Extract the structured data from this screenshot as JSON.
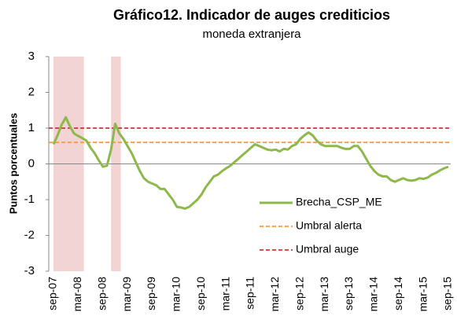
{
  "chart_data": {
    "type": "line",
    "title": "Gráfico12. Indicador de auges crediticios",
    "subtitle": "moneda extranjera",
    "y_label": "Puntos porcentuales",
    "categories": [
      "sep-07",
      null,
      null,
      null,
      null,
      null,
      "mar-08",
      null,
      null,
      null,
      null,
      null,
      "sep-08",
      null,
      null,
      null,
      null,
      null,
      "mar-09",
      null,
      null,
      null,
      null,
      null,
      "sep-09",
      null,
      null,
      null,
      null,
      null,
      "mar-10",
      null,
      null,
      null,
      null,
      null,
      "sep-10",
      null,
      null,
      null,
      null,
      null,
      "mar-11",
      null,
      null,
      null,
      null,
      null,
      "sep-11",
      null,
      null,
      null,
      null,
      null,
      "mar-12",
      null,
      null,
      null,
      null,
      null,
      "sep-12",
      null,
      null,
      null,
      null,
      null,
      "mar-13",
      null,
      null,
      null,
      null,
      null,
      "sep-13",
      null,
      null,
      null,
      null,
      null,
      "mar-14",
      null,
      null,
      null,
      null,
      null,
      "sep-14",
      null,
      null,
      null,
      null,
      null,
      "mar-15",
      null,
      null,
      null,
      null,
      null,
      "sep-15"
    ],
    "series": [
      {
        "name": "Brecha_CSP_ME",
        "color": "#8db84a",
        "values": [
          0.55,
          0.8,
          1.1,
          1.3,
          1.05,
          0.85,
          0.78,
          0.72,
          0.65,
          0.45,
          0.3,
          0.1,
          -0.08,
          -0.05,
          0.4,
          1.12,
          0.85,
          0.7,
          0.5,
          0.3,
          0.05,
          -0.2,
          -0.4,
          -0.5,
          -0.55,
          -0.6,
          -0.7,
          -0.7,
          -0.85,
          -1.0,
          -1.2,
          -1.22,
          -1.25,
          -1.2,
          -1.1,
          -1.0,
          -0.85,
          -0.65,
          -0.5,
          -0.35,
          -0.3,
          -0.2,
          -0.12,
          -0.05,
          0.05,
          0.15,
          0.25,
          0.35,
          0.45,
          0.55,
          0.5,
          0.45,
          0.4,
          0.38,
          0.4,
          0.35,
          0.42,
          0.4,
          0.5,
          0.55,
          0.7,
          0.8,
          0.88,
          0.8,
          0.65,
          0.55,
          0.5,
          0.5,
          0.5,
          0.5,
          0.45,
          0.42,
          0.42,
          0.5,
          0.5,
          0.35,
          0.15,
          -0.05,
          -0.2,
          -0.3,
          -0.35,
          -0.35,
          -0.45,
          -0.5,
          -0.45,
          -0.4,
          -0.45,
          -0.47,
          -0.45,
          -0.4,
          -0.42,
          -0.38,
          -0.3,
          -0.25,
          -0.18,
          -0.12,
          -0.08
        ]
      }
    ],
    "reference_lines": [
      {
        "name": "Umbral alerta",
        "color": "#f39b4a",
        "value": 0.6
      },
      {
        "name": "Umbral auge",
        "color": "#c0393b",
        "value": 1.0
      }
    ],
    "bands": [
      [
        0,
        7
      ],
      [
        14,
        16
      ]
    ],
    "band_color": "#f2d4d4",
    "ylim": [
      -3,
      3
    ],
    "yticks": [
      -3,
      -2,
      -1,
      0,
      1,
      2,
      3
    ]
  }
}
